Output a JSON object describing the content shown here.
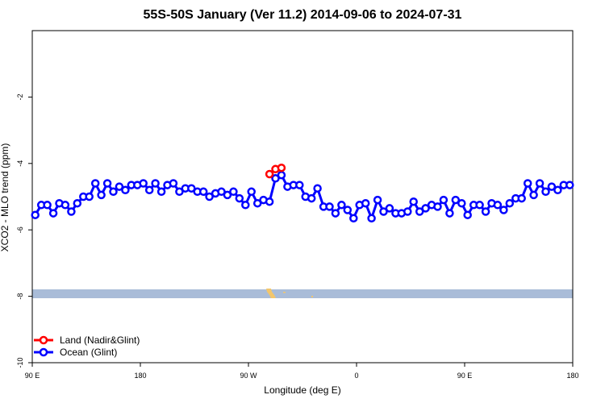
{
  "chart_data": {
    "type": "line",
    "title": "55S-50S January (Ver 11.2)   2014-09-06 to 2024-07-31",
    "xlabel": "Longitude (deg E)",
    "ylabel": "XCO2 - MLO trend (ppm)",
    "x_tick_labels": [
      "90 E",
      "180",
      "90 W",
      "0",
      "90 E",
      "180"
    ],
    "x_ticks_shifted": [
      90,
      180,
      270,
      360,
      450,
      540
    ],
    "xlim_shifted": [
      90,
      540
    ],
    "y_ticks": [
      -10,
      -8,
      -6,
      -4,
      -2
    ],
    "ylim": [
      -10,
      0
    ],
    "grid": false,
    "legend_position": "bottom-left",
    "series": [
      {
        "name": "Land (Nadir&Glint)",
        "color": "#ff0000",
        "x": [
          287.5,
          292.5,
          297.5
        ],
        "y": [
          -4.32,
          -4.17,
          -4.13
        ]
      },
      {
        "name": "Ocean (Glint)",
        "color": "#0000ff",
        "x": [
          92.5,
          97.5,
          102.5,
          107.5,
          112.5,
          117.5,
          122.5,
          127.5,
          132.5,
          137.5,
          142.5,
          147.5,
          152.5,
          157.5,
          162.5,
          167.5,
          172.5,
          177.5,
          182.5,
          187.5,
          192.5,
          197.5,
          202.5,
          207.5,
          212.5,
          217.5,
          222.5,
          227.5,
          232.5,
          237.5,
          242.5,
          247.5,
          252.5,
          257.5,
          262.5,
          267.5,
          272.5,
          277.5,
          282.5,
          287.5,
          292.5,
          297.5,
          302.5,
          307.5,
          312.5,
          317.5,
          322.5,
          327.5,
          332.5,
          337.5,
          342.5,
          347.5,
          352.5,
          357.5,
          362.5,
          367.5,
          372.5,
          377.5,
          382.5,
          387.5,
          392.5,
          397.5,
          402.5,
          407.5,
          412.5,
          417.5,
          422.5,
          427.5,
          432.5,
          437.5,
          442.5,
          447.5,
          452.5,
          457.5,
          462.5,
          467.5,
          472.5,
          477.5,
          482.5,
          487.5,
          492.5,
          497.5,
          502.5,
          507.5,
          512.5,
          517.5,
          522.5,
          527.5,
          532.5,
          537.5
        ],
        "y": [
          -5.55,
          -5.25,
          -5.25,
          -5.5,
          -5.2,
          -5.25,
          -5.45,
          -5.2,
          -5.0,
          -5.0,
          -4.6,
          -4.95,
          -4.6,
          -4.85,
          -4.7,
          -4.8,
          -4.65,
          -4.65,
          -4.6,
          -4.8,
          -4.6,
          -4.85,
          -4.65,
          -4.6,
          -4.85,
          -4.75,
          -4.75,
          -4.85,
          -4.85,
          -5.0,
          -4.9,
          -4.85,
          -4.95,
          -4.85,
          -5.05,
          -5.25,
          -4.85,
          -5.2,
          -5.1,
          -5.15,
          -4.45,
          -4.35,
          -4.7,
          -4.65,
          -4.65,
          -5.0,
          -5.05,
          -4.75,
          -5.3,
          -5.3,
          -5.5,
          -5.25,
          -5.4,
          -5.65,
          -5.25,
          -5.2,
          -5.65,
          -5.1,
          -5.45,
          -5.35,
          -5.5,
          -5.5,
          -5.45,
          -5.15,
          -5.45,
          -5.35,
          -5.25,
          -5.3,
          -5.1,
          -5.5,
          -5.1,
          -5.2,
          -5.55,
          -5.25,
          -5.25,
          -5.45,
          -5.2,
          -5.25,
          -5.4,
          -5.2,
          -5.05,
          -5.05,
          -4.6,
          -4.95,
          -4.6,
          -4.85,
          -4.7,
          -4.8,
          -4.65,
          -4.65
        ]
      }
    ]
  }
}
